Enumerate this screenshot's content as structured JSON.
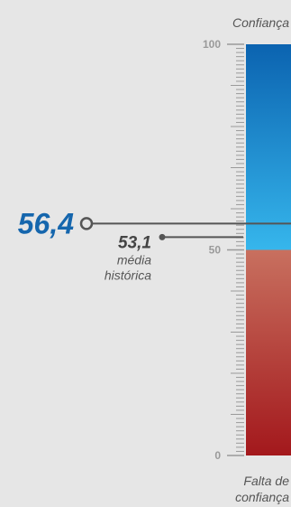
{
  "chart_data": {
    "type": "gauge",
    "labels": {
      "top": "Confiança",
      "bottom_line1": "Falta de",
      "bottom_line2": "confiança"
    },
    "ticks": [
      "100",
      "50",
      "0"
    ],
    "range": [
      0,
      100
    ],
    "midpoint": 50,
    "current": {
      "value": 56.4,
      "display": "56,4"
    },
    "average": {
      "value": 53.1,
      "display": "53,1",
      "label_line1": "média",
      "label_line2": "histórica"
    },
    "colors": {
      "confidence_top": "#0b63b0",
      "confidence_bottom": "#36b6ec",
      "lack_top": "#c8705f",
      "lack_bottom": "#a3181c",
      "current_value": "#1566ad",
      "marker": "#555555",
      "tick": "#9a9a9a"
    }
  }
}
